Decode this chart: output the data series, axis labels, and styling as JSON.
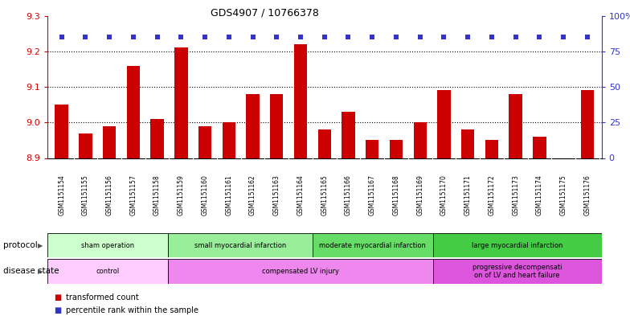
{
  "title": "GDS4907 / 10766378",
  "samples": [
    "GSM1151154",
    "GSM1151155",
    "GSM1151156",
    "GSM1151157",
    "GSM1151158",
    "GSM1151159",
    "GSM1151160",
    "GSM1151161",
    "GSM1151162",
    "GSM1151163",
    "GSM1151164",
    "GSM1151165",
    "GSM1151166",
    "GSM1151167",
    "GSM1151168",
    "GSM1151169",
    "GSM1151170",
    "GSM1151171",
    "GSM1151172",
    "GSM1151173",
    "GSM1151174",
    "GSM1151175",
    "GSM1151176"
  ],
  "bar_values": [
    9.05,
    8.97,
    8.99,
    9.16,
    9.01,
    9.21,
    8.99,
    9.0,
    9.08,
    9.08,
    9.22,
    8.98,
    9.03,
    8.95,
    8.95,
    9.0,
    9.09,
    8.98,
    8.95,
    9.08,
    8.96,
    8.9,
    9.09
  ],
  "percentile_display": [
    85,
    85,
    85,
    85,
    85,
    85,
    85,
    85,
    85,
    85,
    85,
    85,
    85,
    85,
    85,
    85,
    85,
    85,
    85,
    85,
    85,
    85,
    85
  ],
  "bar_color": "#cc0000",
  "percentile_color": "#3333cc",
  "ymin": 8.9,
  "ymax": 9.3,
  "y2min": 0,
  "y2max": 100,
  "yticks": [
    8.9,
    9.0,
    9.1,
    9.2,
    9.3
  ],
  "y2ticks": [
    0,
    25,
    50,
    75,
    100
  ],
  "dotted_lines": [
    9.0,
    9.1,
    9.2
  ],
  "protocol_groups": [
    {
      "label": "sham operation",
      "start": 0,
      "end": 5,
      "color": "#ccffcc"
    },
    {
      "label": "small myocardial infarction",
      "start": 5,
      "end": 11,
      "color": "#99ee99"
    },
    {
      "label": "moderate myocardial infarction",
      "start": 11,
      "end": 16,
      "color": "#66dd66"
    },
    {
      "label": "large myocardial infarction",
      "start": 16,
      "end": 23,
      "color": "#44cc44"
    }
  ],
  "disease_groups": [
    {
      "label": "control",
      "start": 0,
      "end": 5,
      "color": "#ffccff"
    },
    {
      "label": "compensated LV injury",
      "start": 5,
      "end": 16,
      "color": "#ee88ee"
    },
    {
      "label": "progressive decompensati\non of LV and heart failure",
      "start": 16,
      "end": 23,
      "color": "#dd55dd"
    }
  ],
  "tick_bg_color": "#d8d8d8",
  "tick_sep_color": "#ffffff",
  "plot_bg_color": "#ffffff"
}
